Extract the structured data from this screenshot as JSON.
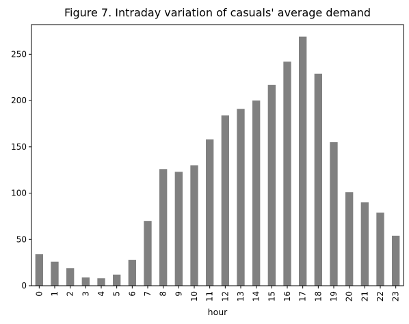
{
  "chart_data": {
    "type": "bar",
    "title": "Figure 7. Intraday variation of casuals' average demand",
    "xlabel": "hour",
    "ylabel": "",
    "categories": [
      "0",
      "1",
      "2",
      "3",
      "4",
      "5",
      "6",
      "7",
      "8",
      "9",
      "10",
      "11",
      "12",
      "13",
      "14",
      "15",
      "16",
      "17",
      "18",
      "19",
      "20",
      "21",
      "22",
      "23"
    ],
    "values": [
      34,
      26,
      19,
      9,
      8,
      12,
      28,
      70,
      126,
      123,
      130,
      158,
      184,
      191,
      200,
      217,
      242,
      269,
      229,
      155,
      101,
      90,
      79,
      54
    ],
    "ylim": [
      0,
      282
    ],
    "yticks": [
      0,
      50,
      100,
      150,
      200,
      250
    ],
    "bar_color": "#808080",
    "grid": false,
    "legend": "none"
  }
}
